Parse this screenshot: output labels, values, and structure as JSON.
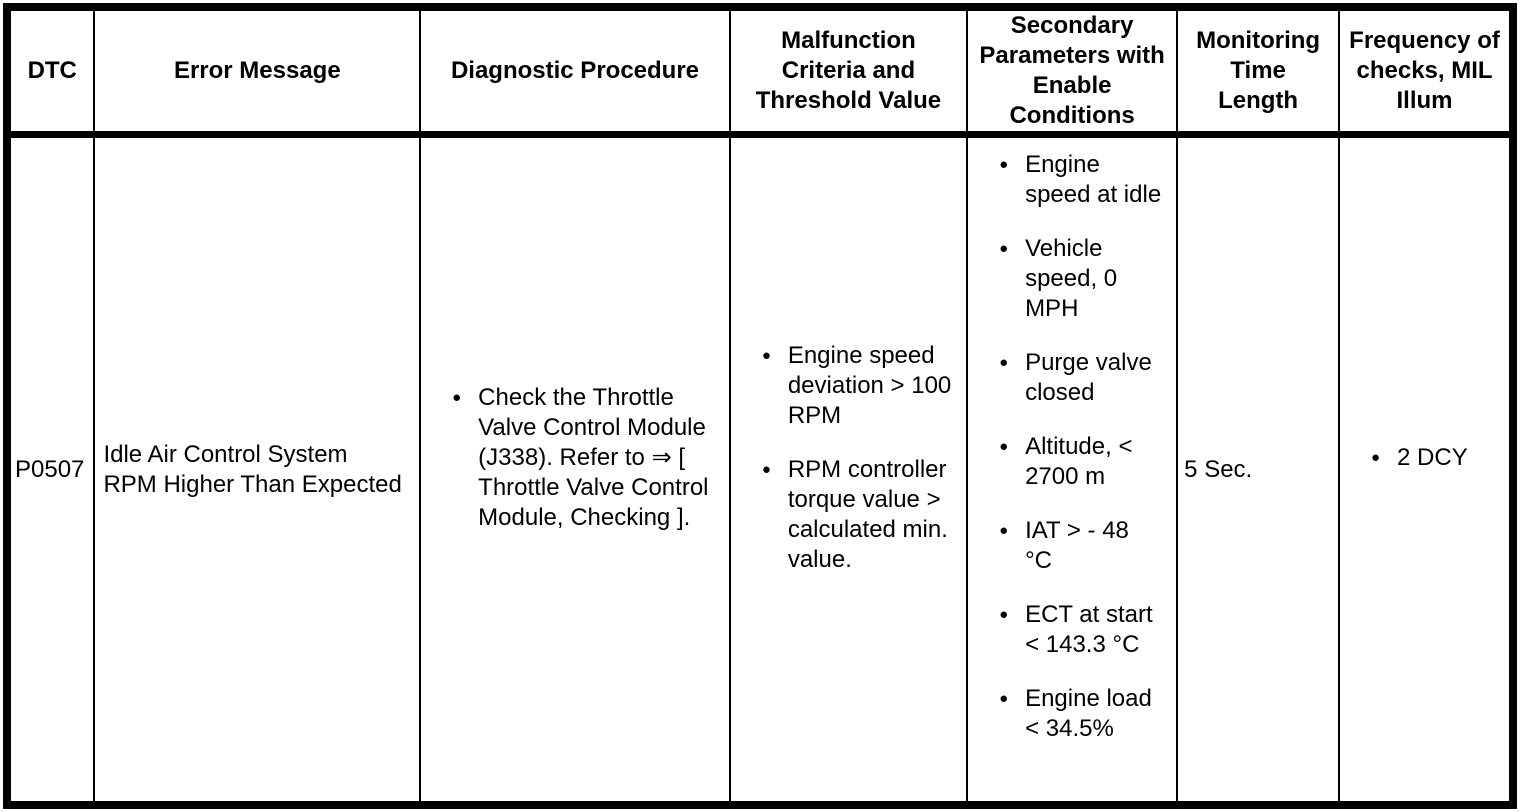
{
  "colors": {
    "border": "#000000",
    "text": "#000000",
    "background": "#ffffff"
  },
  "icons": {
    "bullet": "●"
  },
  "table": {
    "columns": [
      {
        "key": "dtc",
        "label": "DTC"
      },
      {
        "key": "error_message",
        "label": "Error Message"
      },
      {
        "key": "diagnostic_procedure",
        "label": "Diagnostic Procedure"
      },
      {
        "key": "malfunction_criteria",
        "label": "Malfunction\nCriteria and\nThreshold Value"
      },
      {
        "key": "secondary_parameters",
        "label": "Secondary\nParameters with\nEnable\nConditions"
      },
      {
        "key": "monitoring_time",
        "label": "Monitoring\nTime\nLength"
      },
      {
        "key": "frequency",
        "label": "Frequency of\nchecks, MIL\nIllum"
      }
    ],
    "rows": [
      {
        "dtc": "P0507",
        "error_message": "Idle Air Control System RPM Higher Than Expected",
        "diagnostic_procedure": [
          "Check the Throttle Valve Control Module (J338). Refer to ⇒ [ Throttle Valve Control Module, Checking ]."
        ],
        "malfunction_criteria": [
          "Engine speed deviation > 100 RPM",
          "RPM controller torque value > calculated min. value."
        ],
        "secondary_parameters": [
          "Engine speed at idle",
          "Vehicle speed, 0 MPH",
          "Purge valve closed",
          "Altitude, < 2700 m",
          "IAT > - 48 °C",
          "ECT at start < 143.3 °C",
          "Engine load < 34.5%"
        ],
        "monitoring_time": "5 Sec.",
        "frequency": [
          "2 DCY"
        ]
      }
    ]
  }
}
